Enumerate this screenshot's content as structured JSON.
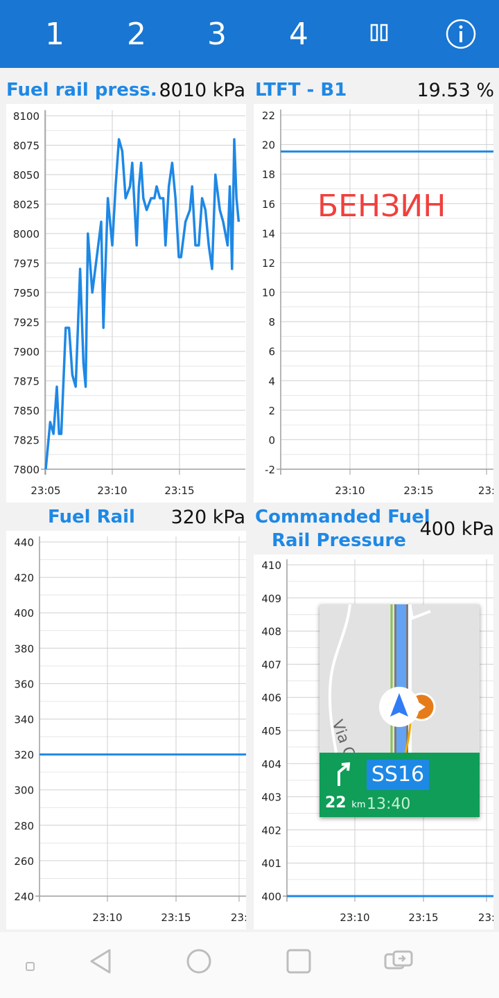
{
  "topbar": {
    "tabs": [
      "1",
      "2",
      "3",
      "4"
    ],
    "pause_icon": "pause-icon",
    "info_icon": "info-icon",
    "color": "#1976d2"
  },
  "panels": [
    {
      "title": "Fuel rail press.",
      "value": "8010 kPa",
      "chart_data": {
        "type": "line",
        "yticks": [
          "8100",
          "8075",
          "8050",
          "8025",
          "8000",
          "7975",
          "7950",
          "7925",
          "7900",
          "7875",
          "7850",
          "7825",
          "7800"
        ],
        "xticks": [
          "23:05",
          "23:10",
          "23:15"
        ],
        "ylim": [
          7800,
          8100
        ],
        "series": [
          {
            "color": "#1e88e5",
            "points": [
              [
                "23:05:00",
                7800
              ],
              [
                "23:05:20",
                7840
              ],
              [
                "23:05:35",
                7830
              ],
              [
                "23:05:50",
                7870
              ],
              [
                "23:06:00",
                7830
              ],
              [
                "23:06:10",
                7830
              ],
              [
                "23:06:30",
                7920
              ],
              [
                "23:06:45",
                7920
              ],
              [
                "23:07:00",
                7880
              ],
              [
                "23:07:15",
                7870
              ],
              [
                "23:07:35",
                7970
              ],
              [
                "23:07:50",
                7890
              ],
              [
                "23:08:00",
                7870
              ],
              [
                "23:08:10",
                8000
              ],
              [
                "23:08:30",
                7950
              ],
              [
                "23:08:50",
                7980
              ],
              [
                "23:09:10",
                8010
              ],
              [
                "23:09:20",
                7920
              ],
              [
                "23:09:40",
                8030
              ],
              [
                "23:10:00",
                7990
              ],
              [
                "23:10:15",
                8040
              ],
              [
                "23:10:30",
                8080
              ],
              [
                "23:10:45",
                8070
              ],
              [
                "23:11:00",
                8030
              ],
              [
                "23:11:20",
                8040
              ],
              [
                "23:11:30",
                8060
              ],
              [
                "23:11:50",
                7990
              ],
              [
                "23:12:00",
                8040
              ],
              [
                "23:12:10",
                8060
              ],
              [
                "23:12:20",
                8030
              ],
              [
                "23:12:35",
                8020
              ],
              [
                "23:12:55",
                8030
              ],
              [
                "23:13:10",
                8030
              ],
              [
                "23:13:20",
                8040
              ],
              [
                "23:13:35",
                8030
              ],
              [
                "23:13:50",
                8030
              ],
              [
                "23:14:00",
                7990
              ],
              [
                "23:14:15",
                8040
              ],
              [
                "23:14:30",
                8060
              ],
              [
                "23:14:45",
                8030
              ],
              [
                "23:15:00",
                7980
              ],
              [
                "23:15:10",
                7980
              ],
              [
                "23:15:30",
                8010
              ],
              [
                "23:15:50",
                8020
              ],
              [
                "23:16:00",
                8040
              ],
              [
                "23:16:15",
                7990
              ],
              [
                "23:16:30",
                7990
              ],
              [
                "23:16:45",
                8030
              ],
              [
                "23:17:00",
                8020
              ],
              [
                "23:17:15",
                7990
              ],
              [
                "23:17:30",
                7970
              ],
              [
                "23:17:45",
                8050
              ],
              [
                "23:18:05",
                8020
              ],
              [
                "23:18:20",
                8010
              ],
              [
                "23:18:40",
                7990
              ],
              [
                "23:18:50",
                8040
              ],
              [
                "23:19:00",
                7970
              ],
              [
                "23:19:10",
                8080
              ],
              [
                "23:19:20",
                8030
              ],
              [
                "23:19:30",
                8010
              ]
            ]
          }
        ]
      }
    },
    {
      "title": "LTFT - B1",
      "value": "19.53 %",
      "overlay_text": "БЕНЗИН",
      "chart_data": {
        "type": "line",
        "yticks": [
          "22",
          "20",
          "18",
          "16",
          "14",
          "12",
          "10",
          "8",
          "6",
          "4",
          "2",
          "0",
          "-2"
        ],
        "xticks": [
          "23:10",
          "23:15",
          "23:"
        ],
        "ylim": [
          -2,
          22
        ],
        "series": [
          {
            "color": "#1e88e5",
            "points": [
              [
                "start",
                19.53
              ],
              [
                "end",
                19.53
              ]
            ]
          }
        ]
      }
    },
    {
      "title": "Fuel Rail",
      "value": "320 kPa",
      "chart_data": {
        "type": "line",
        "yticks": [
          "440",
          "420",
          "400",
          "380",
          "360",
          "340",
          "320",
          "300",
          "280",
          "260",
          "240"
        ],
        "xticks": [
          "23:10",
          "23:15",
          "23:"
        ],
        "ylim": [
          240,
          440
        ],
        "series": [
          {
            "color": "#1e88e5",
            "points": [
              [
                "start",
                320
              ],
              [
                "end",
                320
              ]
            ]
          }
        ]
      }
    },
    {
      "title_line1": "Commanded Fuel",
      "title_line2": "Rail Pressure",
      "value": "400 kPa",
      "chart_data": {
        "type": "line",
        "yticks": [
          "410",
          "409",
          "408",
          "407",
          "406",
          "405",
          "404",
          "403",
          "402",
          "401",
          "400"
        ],
        "xticks": [
          "23:10",
          "23:15",
          "23:"
        ],
        "ylim": [
          400,
          410
        ],
        "series": [
          {
            "color": "#1e88e5",
            "points": [
              [
                "start",
                400
              ],
              [
                "end",
                400
              ]
            ]
          }
        ]
      }
    }
  ],
  "nav_widget": {
    "street_label": "Via C",
    "road": "SS16",
    "distance": "22",
    "distance_unit": "km",
    "eta": "13:40",
    "turn_icon": "turn-right-icon",
    "position_icon": "navigation-arrow-icon",
    "poi_icon": "poi-marker-icon",
    "banner_color": "#0f9d58"
  },
  "navbar": {
    "icons": [
      "square-dot-icon",
      "back-icon",
      "home-icon",
      "recents-icon",
      "screen-mirror-icon"
    ]
  }
}
